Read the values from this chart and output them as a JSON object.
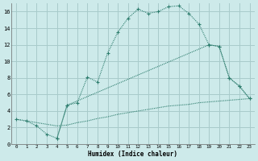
{
  "xlabel": "Humidex (Indice chaleur)",
  "bg_color": "#cdeaea",
  "grid_color": "#a8cbcb",
  "line_color": "#2e7d6e",
  "xlim": [
    -0.5,
    23.5
  ],
  "ylim": [
    0,
    17
  ],
  "xticks": [
    0,
    1,
    2,
    3,
    4,
    5,
    6,
    7,
    8,
    9,
    10,
    11,
    12,
    13,
    14,
    15,
    16,
    17,
    18,
    19,
    20,
    21,
    22,
    23
  ],
  "yticks": [
    0,
    2,
    4,
    6,
    8,
    10,
    12,
    14,
    16
  ],
  "series1_x": [
    0,
    1,
    2,
    3,
    4,
    5,
    6,
    7,
    8,
    9,
    10,
    11,
    12,
    13,
    14,
    15,
    16,
    17,
    18,
    19,
    20,
    21,
    22,
    23
  ],
  "series1_y": [
    3.0,
    2.8,
    2.2,
    1.2,
    0.7,
    4.7,
    5.0,
    8.1,
    7.5,
    11.0,
    13.5,
    15.2,
    16.3,
    15.8,
    16.0,
    16.6,
    16.7,
    15.8,
    14.5,
    12.0,
    11.8,
    8.0,
    7.0,
    5.5
  ],
  "series2_x": [
    4,
    5,
    19,
    20,
    21,
    22,
    23
  ],
  "series2_y": [
    0.7,
    4.7,
    12.0,
    11.8,
    8.0,
    7.0,
    5.5
  ],
  "series3_x": [
    0,
    1,
    2,
    3,
    4,
    5,
    6,
    7,
    8,
    9,
    10,
    11,
    12,
    13,
    14,
    15,
    16,
    17,
    18,
    19,
    20,
    21,
    22,
    23
  ],
  "series3_y": [
    3.0,
    2.8,
    2.6,
    2.4,
    2.2,
    2.3,
    2.6,
    2.8,
    3.1,
    3.3,
    3.6,
    3.8,
    4.0,
    4.2,
    4.4,
    4.6,
    4.7,
    4.8,
    5.0,
    5.1,
    5.2,
    5.3,
    5.4,
    5.5
  ]
}
